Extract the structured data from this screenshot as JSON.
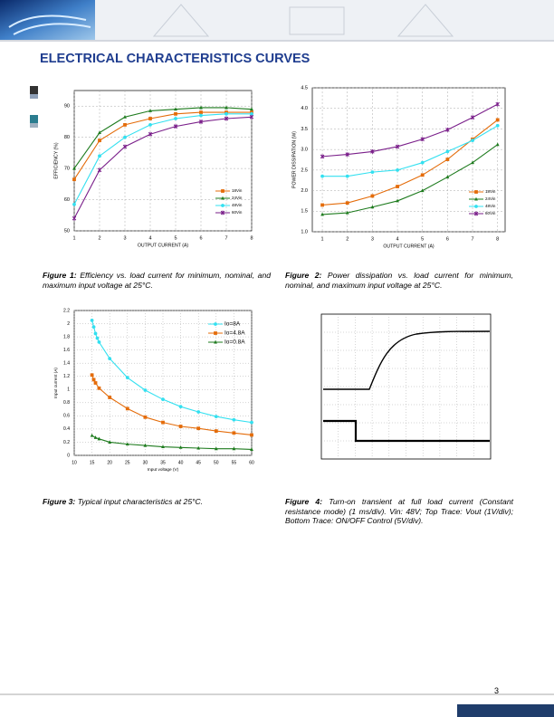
{
  "page": {
    "section_title": "ELECTRICAL CHARACTERISTICS CURVES",
    "page_number": "3"
  },
  "figure_captions": [
    {
      "label": "Figure 1:",
      "text": "Efficiency vs. load current for minimum, nominal, and maximum input voltage at 25°C."
    },
    {
      "label": "Figure 2:",
      "text": "Power dissipation vs. load current for minimum, nominal, and maximum input voltage at 25°C."
    },
    {
      "label": "Figure 3:",
      "text": "Typical input characteristics at 25°C."
    },
    {
      "label": "Figure 4:",
      "text": "Turn-on transient at full load current (Constant resistance mode) (1 ms/div). Vin: 48V; Top Trace: Vout (1V/div); Bottom Trace: ON/OFF Control (5V/div)."
    }
  ],
  "chart_data": [
    {
      "type": "line",
      "xlabel": "OUTPUT CURRENT (A)",
      "ylabel": "EFFICIENCY (%)",
      "x": [
        1,
        2,
        3,
        4,
        5,
        6,
        7,
        8
      ],
      "xlim": [
        1,
        8
      ],
      "xticks": [
        1,
        2,
        3,
        4,
        5,
        6,
        7,
        8
      ],
      "ylim": [
        50,
        95
      ],
      "yticks": [
        50,
        60,
        70,
        80,
        90
      ],
      "grid": true,
      "legend": "lower right",
      "series": [
        {
          "name": "18Vin",
          "color": "#e46c0a",
          "marker": "square",
          "values": [
            66.5,
            79,
            84,
            86,
            87.5,
            88,
            88,
            88
          ]
        },
        {
          "name": "24Vin",
          "color": "#1e7b1e",
          "marker": "triangle",
          "values": [
            70,
            81.5,
            86.5,
            88.5,
            89,
            89.5,
            89.5,
            89
          ]
        },
        {
          "name": "48Vin",
          "color": "#33e0f0",
          "marker": "circle",
          "values": [
            58.5,
            74,
            80,
            84,
            86,
            87,
            87.5,
            87.5
          ]
        },
        {
          "name": "60Vin",
          "color": "#7a1f8a",
          "marker": "star",
          "values": [
            54,
            69.5,
            77,
            81,
            83.5,
            85,
            86,
            86.5
          ]
        }
      ]
    },
    {
      "type": "line",
      "xlabel": "OUTPUT CURRENT (A)",
      "ylabel": "POWER DISSIPATION (W)",
      "x": [
        1,
        2,
        3,
        4,
        5,
        6,
        7,
        8
      ],
      "xlim": [
        0.6,
        8.3
      ],
      "xticks": [
        1,
        2,
        3,
        4,
        5,
        6,
        7,
        8
      ],
      "ylim": [
        1,
        4.5
      ],
      "yticks": [
        {
          "value": 1,
          "label": "1.0"
        },
        1.5,
        {
          "value": 2,
          "label": "2.0"
        },
        2.5,
        {
          "value": 3,
          "label": "3.0"
        },
        3.5,
        {
          "value": 4,
          "label": "4.0"
        },
        4.5
      ],
      "grid": true,
      "legend": "lower right",
      "series": [
        {
          "name": "18Vin",
          "color": "#e46c0a",
          "marker": "square",
          "values": [
            1.65,
            1.7,
            1.87,
            2.1,
            2.38,
            2.76,
            3.25,
            3.72
          ]
        },
        {
          "name": "24Vin",
          "color": "#1e7b1e",
          "marker": "triangle",
          "values": [
            1.42,
            1.46,
            1.6,
            1.75,
            2.0,
            2.33,
            2.68,
            3.12
          ]
        },
        {
          "name": "48Vin",
          "color": "#33e0f0",
          "marker": "circle",
          "values": [
            2.35,
            2.35,
            2.45,
            2.5,
            2.68,
            2.95,
            3.22,
            3.58
          ]
        },
        {
          "name": "60Vin",
          "color": "#7a1f8a",
          "marker": "star",
          "values": [
            2.83,
            2.88,
            2.95,
            3.07,
            3.25,
            3.48,
            3.78,
            4.1
          ]
        }
      ]
    },
    {
      "type": "line",
      "xlabel": "Input voltage (V)",
      "ylabel": "Input current (A)",
      "xlim": [
        10,
        60
      ],
      "xticks": [
        10,
        15,
        20,
        25,
        30,
        35,
        40,
        45,
        50,
        55,
        60
      ],
      "ylim": [
        0,
        2.2
      ],
      "yticks": [
        0,
        0.2,
        0.4,
        0.6,
        0.8,
        1,
        1.2,
        1.4,
        1.6,
        1.8,
        2,
        2.2
      ],
      "grid": true,
      "legend": "upper right",
      "series": [
        {
          "name": "Io=8A",
          "color": "#33e0f0",
          "marker": "circle",
          "x": [
            15,
            15.5,
            16,
            16.5,
            17,
            20,
            25,
            30,
            35,
            40,
            45,
            50,
            55,
            60
          ],
          "values": [
            2.05,
            1.95,
            1.85,
            1.78,
            1.72,
            1.47,
            1.18,
            0.99,
            0.85,
            0.74,
            0.66,
            0.59,
            0.54,
            0.5
          ]
        },
        {
          "name": "Io=4.8A",
          "color": "#e46c0a",
          "marker": "square",
          "x": [
            15,
            15.5,
            16,
            17,
            20,
            25,
            30,
            35,
            40,
            45,
            50,
            55,
            60
          ],
          "values": [
            1.22,
            1.15,
            1.1,
            1.02,
            0.88,
            0.71,
            0.58,
            0.5,
            0.44,
            0.41,
            0.37,
            0.34,
            0.31
          ]
        },
        {
          "name": "Io=0.8A",
          "color": "#1e7b1e",
          "marker": "triangle",
          "x": [
            15,
            16,
            17,
            20,
            25,
            30,
            35,
            40,
            45,
            50,
            55,
            60
          ],
          "values": [
            0.3,
            0.27,
            0.25,
            0.2,
            0.17,
            0.15,
            0.13,
            0.12,
            0.11,
            0.1,
            0.1,
            0.09
          ]
        }
      ]
    }
  ]
}
